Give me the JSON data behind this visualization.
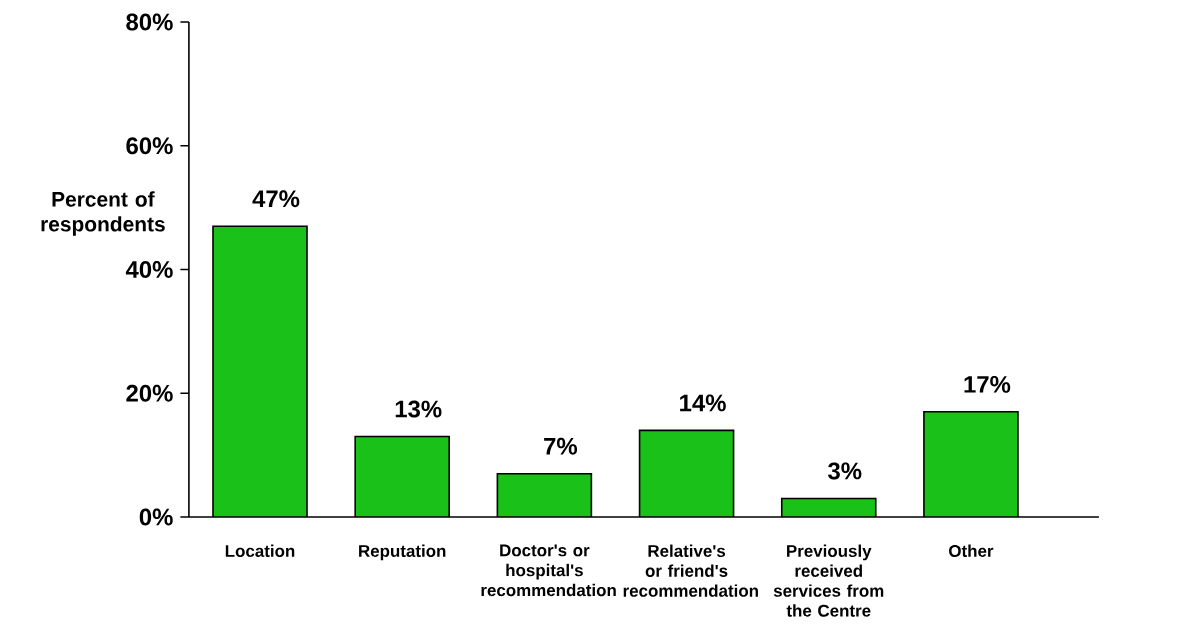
{
  "chart_data": {
    "type": "bar",
    "ylabel": "Percent of respondents",
    "categories": [
      "Location",
      "Reputation",
      "Doctor's or hospital's recommendation",
      "Relative's or friend's recommendation",
      "Previously received services from the Centre",
      "Other"
    ],
    "values": [
      47,
      13,
      7,
      14,
      3,
      17
    ],
    "color": "#19c119",
    "value_labels": [
      "47%",
      "13%",
      "7%",
      "14%",
      "3%",
      "17%"
    ],
    "ylim": [
      0,
      80
    ],
    "yticks": [
      {
        "value": 0,
        "label": "0%"
      },
      {
        "value": 20,
        "label": "20%"
      },
      {
        "value": 40,
        "label": "40%"
      },
      {
        "value": 60,
        "label": "60%"
      },
      {
        "value": 80,
        "label": "80%"
      }
    ],
    "grid": false
  }
}
